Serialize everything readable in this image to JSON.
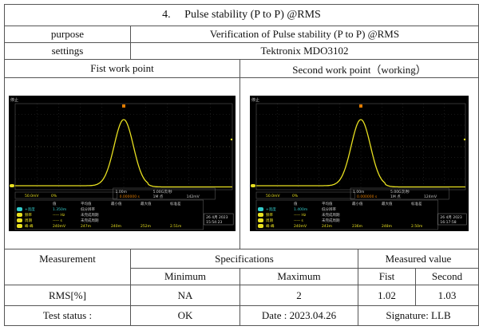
{
  "title": "4.     Pulse stability (P to P) @RMS",
  "purpose": {
    "label": "purpose",
    "value": "Verification of Pulse stability (P to P) @RMS"
  },
  "settings": {
    "label": "settings",
    "value": "Tektronix MDO3102"
  },
  "points": [
    {
      "label": "Fist work point",
      "scope": {
        "status": "停止",
        "ch_scale": "50.0mV",
        "ch_pct": "0%",
        "timebase": "1.00m",
        "rate": "5.00G次/秒",
        "trigger": "0.000000 s",
        "points": "1M 点",
        "trig_level": "142mV",
        "headers": [
          "值",
          "平均值",
          "最小值",
          "最大值",
          "标准差"
        ],
        "rows": [
          [
            "+宽度",
            "1.350m",
            "低分辨率"
          ],
          [
            "频率",
            "----- Hz",
            "未完成周期"
          ],
          [
            "周期",
            "----- s",
            "未完成周期"
          ],
          [
            "峰-峰",
            "240mV",
            "247m",
            "240m",
            "252m",
            "2.51m"
          ]
        ],
        "date": "26 4月 2023",
        "time": "15:54:23"
      }
    },
    {
      "label": "Second work point（working）",
      "scope": {
        "status": "停止",
        "ch_scale": "50.0mV",
        "ch_pct": "0%",
        "timebase": "1.00m",
        "rate": "5.00G次/秒",
        "trigger": "0.000000 s",
        "points": "1M 点",
        "trig_level": "124mV",
        "headers": [
          "值",
          "平均值",
          "最小值",
          "最大值",
          "标准差"
        ],
        "rows": [
          [
            "+宽度",
            "1.400m",
            "低分辨率"
          ],
          [
            "频率",
            "----- Hz",
            "未完成周期"
          ],
          [
            "周期",
            "----- s",
            "未完成周期"
          ],
          [
            "峰-峰",
            "240mV",
            "243m",
            "236m",
            "248m",
            "2.50m"
          ]
        ],
        "date": "26 4月 2023",
        "time": "16:17:58"
      }
    }
  ],
  "measurement": {
    "label": "Measurement",
    "specifications": "Specifications",
    "measured": "Measured value",
    "minimum": "Minimum",
    "maximum": "Maximum",
    "fist": "Fist",
    "second": "Second"
  },
  "rms": {
    "label": "RMS[%]",
    "min": "NA",
    "max": "2",
    "fist": "1.02",
    "second": "1.03"
  },
  "status": {
    "label": "Test status :",
    "value": "OK",
    "date": "Date : 2023.04.26",
    "signature": "Signature: LLB"
  },
  "colors": {
    "trace": "#e8e020",
    "screen": "#000000"
  }
}
